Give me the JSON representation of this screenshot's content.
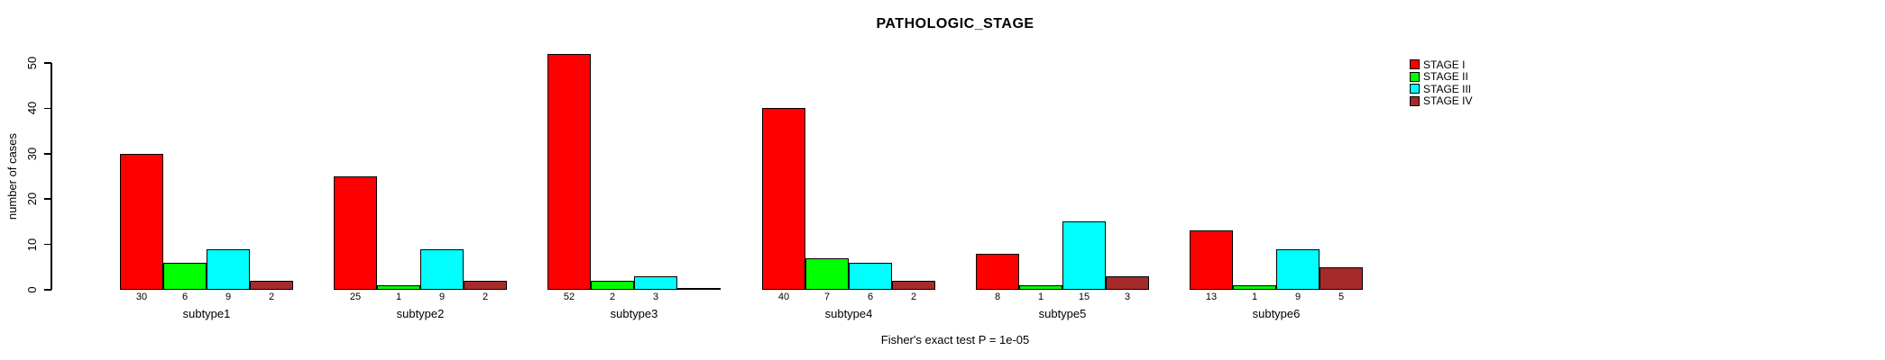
{
  "title": "PATHOLOGIC_STAGE",
  "footer": "Fisher's exact test P = 1e-05",
  "chart_data": {
    "type": "bar",
    "title": "PATHOLOGIC_STAGE",
    "xlabel": "",
    "ylabel": "number of cases",
    "ylim": [
      0,
      50
    ],
    "yticks": [
      0,
      10,
      20,
      30,
      40,
      50
    ],
    "grid": false,
    "legend_position": "top-right",
    "bar_value_labels": true,
    "annotation": "Fisher's exact test P = 1e-05",
    "categories": [
      "subtype1",
      "subtype2",
      "subtype3",
      "subtype4",
      "subtype5",
      "subtype6"
    ],
    "series": [
      {
        "name": "STAGE I",
        "color": "#FF0000",
        "values": [
          30,
          25,
          52,
          40,
          8,
          13
        ]
      },
      {
        "name": "STAGE II",
        "color": "#00FF00",
        "values": [
          6,
          1,
          2,
          7,
          1,
          1
        ]
      },
      {
        "name": "STAGE III",
        "color": "#00FFFF",
        "values": [
          9,
          9,
          3,
          6,
          15,
          9
        ]
      },
      {
        "name": "STAGE IV",
        "color": "#A52A2A",
        "values": [
          2,
          2,
          0,
          2,
          3,
          5
        ]
      }
    ]
  }
}
